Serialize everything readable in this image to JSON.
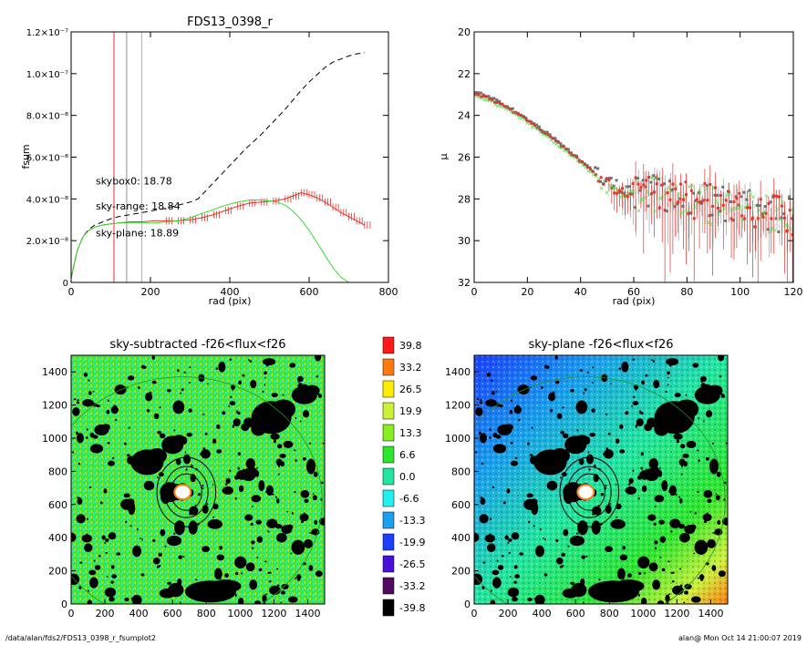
{
  "chart_data": [
    {
      "id": "fsum",
      "type": "line",
      "title": "FDS13_0398_r",
      "xlabel": "rad (pix)",
      "ylabel": "fsum",
      "xlim": [
        0,
        800
      ],
      "ylim": [
        0,
        1.2e-07
      ],
      "xticks": [
        "0",
        "200",
        "400",
        "600",
        "800"
      ],
      "yticks": [
        {
          "v": 0,
          "label": "0"
        },
        {
          "v": 2e-08,
          "label": "2.0×10⁻⁸"
        },
        {
          "v": 4e-08,
          "label": "4.0×10⁻⁸"
        },
        {
          "v": 6e-08,
          "label": "6.0×10⁻⁸"
        },
        {
          "v": 8e-08,
          "label": "8.0×10⁻⁸"
        },
        {
          "v": 1e-07,
          "label": "1.0×10⁻⁷"
        },
        {
          "v": 1.2e-07,
          "label": "1.2×10⁻⁷"
        }
      ],
      "vlines": [
        {
          "x": 108,
          "color": "#e8322a"
        },
        {
          "x": 140,
          "color": "#909090"
        },
        {
          "x": 178,
          "color": "#b0b0b0"
        }
      ],
      "annotations": [
        {
          "text": "skybox0: 18.78",
          "color": "#000000",
          "x": 62,
          "y": 4.7e-08
        },
        {
          "text": "sky-range: 18.84",
          "color": "#e8322a",
          "x": 62,
          "y": 3.5e-08
        },
        {
          "text": "sky-plane: 18.89",
          "color": "#33dd33",
          "x": 62,
          "y": 2.2e-08
        }
      ],
      "series": [
        {
          "color": "#000000",
          "dash": true,
          "x": [
            0,
            15,
            30,
            45,
            60,
            80,
            100,
            120,
            150,
            180,
            210,
            240,
            270,
            300,
            320,
            340,
            360,
            380,
            400,
            420,
            440,
            460,
            480,
            500,
            520,
            540,
            560,
            580,
            600,
            620,
            640,
            660,
            680,
            700,
            720,
            740
          ],
          "y": [
            2e-09,
            1.5e-08,
            2.2e-08,
            2.55e-08,
            2.75e-08,
            2.9e-08,
            3.05e-08,
            3.15e-08,
            3.25e-08,
            3.35e-08,
            3.45e-08,
            3.55e-08,
            3.7e-08,
            3.85e-08,
            4e-08,
            4.4e-08,
            4.8e-08,
            5.2e-08,
            5.6e-08,
            6e-08,
            6.4e-08,
            6.75e-08,
            7.1e-08,
            7.5e-08,
            7.9e-08,
            8.3e-08,
            8.75e-08,
            9.2e-08,
            9.6e-08,
            9.95e-08,
            1.03e-07,
            1.055e-07,
            1.07e-07,
            1.085e-07,
            1.095e-07,
            1.1e-07
          ]
        },
        {
          "color": "#e8322a",
          "dash": false,
          "errors": true,
          "x": [
            0,
            15,
            30,
            45,
            60,
            80,
            100,
            120,
            150,
            180,
            210,
            240,
            270,
            300,
            330,
            360,
            390,
            420,
            450,
            480,
            510,
            540,
            560,
            580,
            600,
            620,
            640,
            660,
            680,
            700,
            720,
            740
          ],
          "y": [
            2e-09,
            1.5e-08,
            2.2e-08,
            2.5e-08,
            2.65e-08,
            2.75e-08,
            2.8e-08,
            2.85e-08,
            2.9e-08,
            2.9e-08,
            2.95e-08,
            2.95e-08,
            2.95e-08,
            3e-08,
            3.1e-08,
            3.25e-08,
            3.45e-08,
            3.65e-08,
            3.8e-08,
            3.85e-08,
            3.9e-08,
            4e-08,
            4.15e-08,
            4.3e-08,
            4.2e-08,
            4.05e-08,
            3.85e-08,
            3.6e-08,
            3.35e-08,
            3.15e-08,
            2.95e-08,
            2.75e-08
          ]
        },
        {
          "color": "#33dd33",
          "dash": false,
          "x": [
            0,
            15,
            30,
            45,
            60,
            80,
            100,
            120,
            150,
            180,
            210,
            240,
            270,
            300,
            330,
            360,
            390,
            420,
            450,
            480,
            500,
            520,
            540,
            560,
            580,
            600,
            620,
            640,
            660,
            680,
            700
          ],
          "y": [
            2e-09,
            1.5e-08,
            2.2e-08,
            2.5e-08,
            2.65e-08,
            2.75e-08,
            2.8e-08,
            2.85e-08,
            2.85e-08,
            2.85e-08,
            2.85e-08,
            2.9e-08,
            2.95e-08,
            3.1e-08,
            3.3e-08,
            3.5e-08,
            3.7e-08,
            3.85e-08,
            3.95e-08,
            3.95e-08,
            3.9e-08,
            3.85e-08,
            3.7e-08,
            3.4e-08,
            3e-08,
            2.5e-08,
            1.9e-08,
            1.3e-08,
            7e-09,
            2.5e-09,
            0
          ]
        }
      ]
    },
    {
      "id": "mu",
      "type": "scatter",
      "title": "",
      "xlabel": "rad (pix)",
      "ylabel": "μ",
      "xlim": [
        0,
        120
      ],
      "ylim": [
        32,
        20
      ],
      "xticks": [
        "0",
        "20",
        "40",
        "60",
        "80",
        "100",
        "120"
      ],
      "yticks": [
        "20",
        "22",
        "24",
        "26",
        "28",
        "30",
        "32"
      ],
      "profile_start": {
        "x": 0,
        "y": 22.9
      },
      "profile_knee": {
        "x": 50,
        "y": 27.3
      },
      "profile_tail": {
        "x": 120,
        "y": 28.8
      }
    },
    {
      "id": "sky-subtracted",
      "type": "heatmap",
      "title": "sky-subtracted -f26<flux<f26",
      "xticks": [
        "0",
        "200",
        "400",
        "600",
        "800",
        "1000",
        "1200",
        "1400"
      ],
      "yticks": [
        "0",
        "200",
        "400",
        "600",
        "800",
        "1000",
        "1200",
        "1400"
      ],
      "xlim": [
        0,
        1500
      ],
      "ylim": [
        0,
        1500
      ]
    },
    {
      "id": "sky-plane",
      "type": "heatmap",
      "title": "sky-plane -f26<flux<f26",
      "xticks": [
        "0",
        "200",
        "400",
        "600",
        "800",
        "1000",
        "1200",
        "1400"
      ],
      "yticks": [
        "0",
        "200",
        "400",
        "600",
        "800",
        "1000",
        "1200",
        "1400"
      ],
      "xlim": [
        0,
        1500
      ],
      "ylim": [
        0,
        1500
      ]
    }
  ],
  "colorbar": {
    "levels": [
      {
        "label": "39.8",
        "color": "#ff1a1a"
      },
      {
        "label": "33.2",
        "color": "#ff7a10"
      },
      {
        "label": "26.5",
        "color": "#ffee00"
      },
      {
        "label": "19.9",
        "color": "#ccf03a"
      },
      {
        "label": "13.3",
        "color": "#88ee22"
      },
      {
        "label": "6.6",
        "color": "#2ee62e"
      },
      {
        "label": "0.0",
        "color": "#22e6a0"
      },
      {
        "label": "-6.6",
        "color": "#22f0f0"
      },
      {
        "label": "-13.3",
        "color": "#1aa0ee"
      },
      {
        "label": "-19.9",
        "color": "#1a40ff"
      },
      {
        "label": "-26.5",
        "color": "#4a10d8"
      },
      {
        "label": "-33.2",
        "color": "#500a60"
      },
      {
        "label": "-39.8",
        "color": "#000000"
      }
    ]
  },
  "footer": {
    "path": "/data/alan/fds2/FDS13_0398_r_fsumplot2",
    "stamp": "alan@  Mon Oct 14 21:00:07 2019"
  }
}
